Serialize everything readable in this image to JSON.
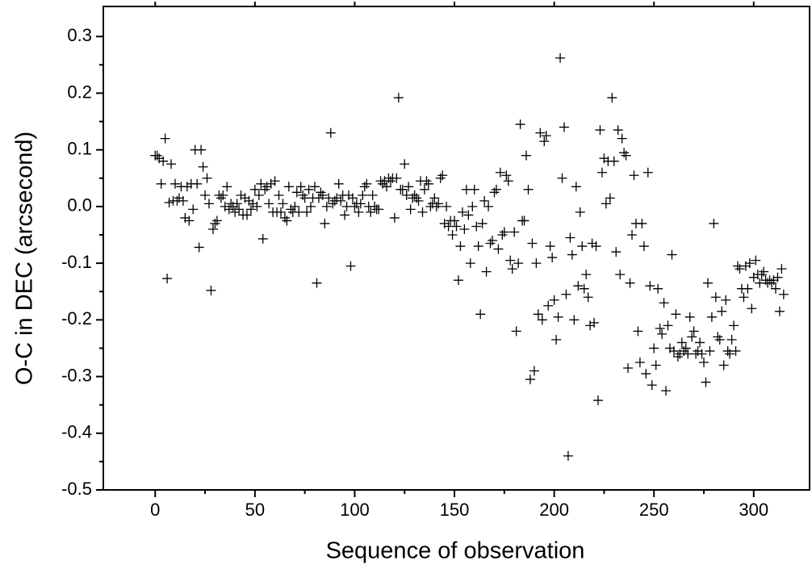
{
  "chart_data": {
    "type": "scatter",
    "x_label": "Sequence of observation",
    "y_label": "O-C in DEC (arcsecond)",
    "color": "#000000",
    "xlim": [
      -26,
      328
    ],
    "ylim": [
      -0.5,
      0.353
    ],
    "xticks": [
      0,
      50,
      100,
      150,
      200,
      250,
      300
    ],
    "yticks": [
      -0.5,
      -0.4,
      -0.3,
      -0.2,
      -0.1,
      {
        "value": 0,
        "label": "0.0"
      },
      0.1,
      0.2,
      0.3
    ],
    "x": [
      0,
      1,
      2,
      3,
      4,
      5,
      6,
      7,
      8,
      9,
      10,
      11,
      12,
      13,
      14,
      15,
      16,
      17,
      18,
      19,
      20,
      21,
      22,
      23,
      24,
      25,
      26,
      27,
      28,
      29,
      30,
      31,
      32,
      33,
      34,
      35,
      36,
      37,
      38,
      39,
      40,
      41,
      42,
      43,
      44,
      45,
      46,
      47,
      48,
      49,
      50,
      51,
      52,
      53,
      54,
      55,
      56,
      57,
      58,
      59,
      60,
      61,
      62,
      63,
      64,
      65,
      66,
      67,
      68,
      69,
      70,
      71,
      72,
      73,
      74,
      75,
      76,
      77,
      78,
      79,
      80,
      81,
      82,
      83,
      84,
      85,
      86,
      87,
      88,
      89,
      90,
      91,
      92,
      93,
      94,
      95,
      96,
      97,
      98,
      99,
      100,
      101,
      102,
      103,
      104,
      105,
      106,
      107,
      108,
      109,
      110,
      111,
      112,
      113,
      114,
      115,
      116,
      117,
      118,
      119,
      120,
      121,
      122,
      123,
      124,
      125,
      126,
      127,
      128,
      129,
      130,
      131,
      132,
      133,
      134,
      135,
      136,
      137,
      138,
      139,
      140,
      141,
      142,
      143,
      144,
      145,
      146,
      147,
      148,
      149,
      150,
      151,
      152,
      153,
      154,
      155,
      156,
      157,
      158,
      159,
      160,
      161,
      162,
      163,
      164,
      165,
      166,
      167,
      168,
      169,
      170,
      171,
      172,
      173,
      174,
      175,
      176,
      177,
      178,
      179,
      180,
      181,
      182,
      183,
      184,
      185,
      186,
      187,
      188,
      189,
      190,
      191,
      192,
      193,
      194,
      195,
      196,
      197,
      198,
      199,
      200,
      201,
      202,
      203,
      204,
      205,
      206,
      207,
      208,
      209,
      210,
      211,
      212,
      213,
      214,
      215,
      216,
      217,
      218,
      219,
      220,
      221,
      222,
      223,
      224,
      225,
      226,
      227,
      228,
      229,
      230,
      231,
      232,
      233,
      234,
      235,
      236,
      237,
      238,
      239,
      240,
      241,
      242,
      243,
      244,
      245,
      246,
      247,
      248,
      249,
      250,
      251,
      252,
      253,
      254,
      255,
      256,
      257,
      258,
      259,
      260,
      261,
      262,
      263,
      264,
      265,
      266,
      267,
      268,
      269,
      270,
      271,
      272,
      273,
      274,
      275,
      276,
      277,
      278,
      279,
      280,
      281,
      282,
      283,
      284,
      285,
      286,
      287,
      288,
      289,
      290,
      291,
      292,
      293,
      294,
      295,
      296,
      297,
      298,
      299,
      300,
      301,
      302,
      303,
      304,
      305,
      306,
      307,
      308,
      309,
      310,
      311,
      312,
      313,
      314,
      315
    ],
    "values": [
      0.09,
      0.09,
      0.085,
      0.04,
      0.08,
      0.12,
      -0.127,
      0.007,
      0.075,
      0.01,
      0.04,
      0.01,
      0.015,
      0.035,
      0.01,
      -0.02,
      0.035,
      -0.025,
      0.04,
      -0.005,
      0.1,
      0.04,
      -0.072,
      0.1,
      0.07,
      0.02,
      0.05,
      0.005,
      -0.148,
      -0.04,
      -0.03,
      -0.025,
      0.02,
      0.015,
      0.02,
      0.0,
      0.035,
      -0.005,
      0.005,
      0.0,
      -0.01,
      0.005,
      -0.005,
      0.02,
      -0.015,
      0.015,
      -0.015,
      0.01,
      -0.005,
      0.005,
      0.03,
      0.0,
      0.02,
      0.04,
      -0.057,
      0.03,
      0.035,
      0.005,
      0.04,
      -0.01,
      0.045,
      -0.01,
      0.02,
      -0.01,
      0.005,
      -0.02,
      -0.025,
      0.035,
      -0.005,
      -0.01,
      0.0,
      0.025,
      -0.01,
      0.035,
      0.02,
      0.015,
      -0.01,
      0.03,
      0.0,
      0.015,
      0.035,
      -0.135,
      0.015,
      0.025,
      0.02,
      -0.03,
      0.0,
      0.015,
      0.13,
      0.005,
      0.01,
      0.015,
      0.04,
      0.01,
      0.02,
      -0.015,
      0.0,
      0.02,
      -0.105,
      0.015,
      0.0,
      0.005,
      -0.01,
      0.005,
      0.02,
      0.035,
      0.04,
      0.0,
      -0.01,
      0.02,
      0.0,
      -0.005,
      -0.005,
      0.045,
      0.04,
      0.045,
      0.035,
      0.05,
      0.045,
      0.05,
      -0.02,
      0.05,
      0.192,
      0.03,
      0.03,
      0.075,
      0.02,
      0.035,
      -0.005,
      0.015,
      0.02,
      0.015,
      0.01,
      0.045,
      -0.01,
      0.03,
      0.045,
      0.04,
      0.0,
      0.005,
      0.015,
      0.0,
      0.005,
      0.05,
      0.055,
      -0.03,
      0.0,
      -0.035,
      -0.025,
      -0.05,
      -0.025,
      -0.035,
      -0.13,
      -0.07,
      -0.01,
      -0.04,
      0.03,
      -0.015,
      -0.1,
      0.0,
      0.03,
      -0.035,
      -0.07,
      -0.19,
      -0.03,
      0.01,
      -0.115,
      0.0,
      -0.065,
      -0.06,
      0.025,
      0.03,
      -0.075,
      0.06,
      -0.05,
      -0.045,
      0.055,
      0.045,
      -0.095,
      -0.11,
      -0.045,
      -0.22,
      -0.1,
      0.145,
      -0.025,
      -0.025,
      0.09,
      0.03,
      -0.305,
      -0.065,
      -0.29,
      -0.1,
      -0.19,
      0.13,
      -0.2,
      0.115,
      0.125,
      -0.175,
      -0.07,
      -0.09,
      -0.165,
      -0.235,
      -0.195,
      0.262,
      0.05,
      0.14,
      -0.155,
      -0.44,
      -0.055,
      -0.085,
      -0.2,
      0.035,
      -0.14,
      -0.01,
      -0.07,
      -0.145,
      -0.12,
      -0.16,
      -0.21,
      -0.065,
      -0.205,
      -0.07,
      -0.342,
      0.135,
      0.06,
      0.085,
      0.005,
      0.08,
      0.015,
      0.192,
      0.08,
      -0.08,
      0.135,
      -0.12,
      0.12,
      0.095,
      0.09,
      -0.285,
      -0.135,
      -0.05,
      0.055,
      -0.03,
      -0.22,
      -0.275,
      -0.03,
      -0.07,
      -0.295,
      0.06,
      -0.14,
      -0.315,
      -0.25,
      -0.28,
      -0.145,
      -0.215,
      -0.225,
      -0.17,
      -0.325,
      -0.21,
      -0.25,
      -0.085,
      -0.255,
      -0.19,
      -0.265,
      -0.26,
      -0.24,
      -0.255,
      -0.25,
      -0.26,
      -0.195,
      -0.23,
      -0.22,
      -0.26,
      -0.255,
      -0.24,
      -0.26,
      -0.275,
      -0.31,
      -0.135,
      -0.255,
      -0.195,
      -0.03,
      -0.16,
      -0.23,
      -0.235,
      -0.185,
      -0.28,
      -0.165,
      -0.255,
      -0.26,
      -0.235,
      -0.21,
      -0.255,
      -0.105,
      -0.11,
      -0.145,
      -0.16,
      -0.105,
      -0.145,
      -0.1,
      -0.18,
      -0.125,
      -0.095,
      -0.12,
      -0.135,
      -0.12,
      -0.115,
      -0.13,
      -0.135,
      -0.13,
      -0.135,
      -0.13,
      -0.145,
      -0.125,
      -0.185,
      -0.11,
      -0.155
    ]
  }
}
